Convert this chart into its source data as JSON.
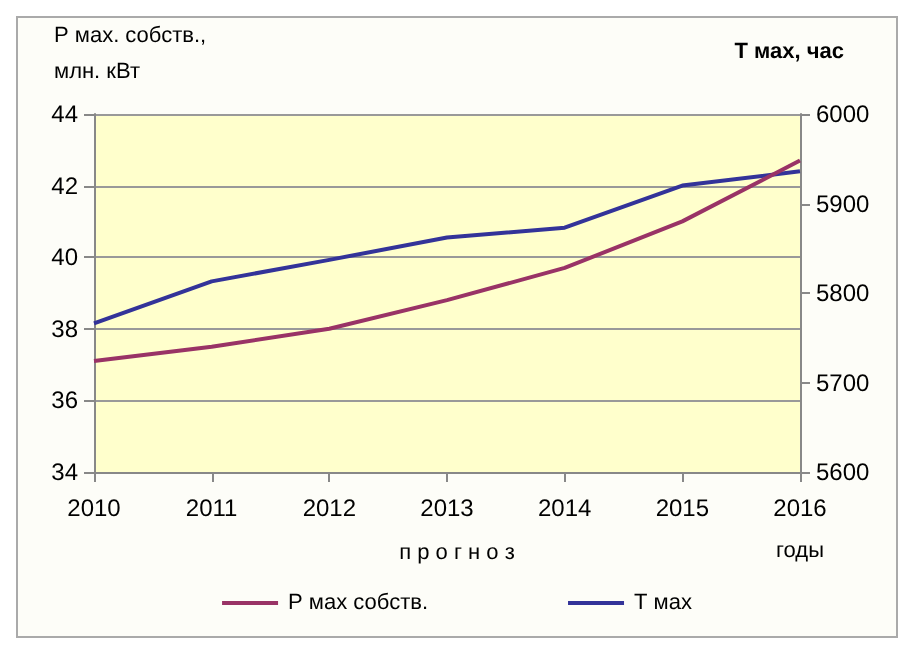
{
  "chart_data": {
    "type": "line",
    "categories": [
      "2010",
      "2011",
      "2012",
      "2013",
      "2014",
      "2015",
      "2016"
    ],
    "series": [
      {
        "name": "Р мах собств.",
        "color": "#993366",
        "values": [
          37.1,
          37.5,
          38.0,
          38.8,
          39.7,
          41.0,
          42.7
        ]
      },
      {
        "name": "Т мах",
        "color": "#333399",
        "axis": "y2",
        "values": [
          5766,
          5813,
          5837,
          5862,
          5873,
          5920,
          5936
        ]
      }
    ],
    "ylabel": "Р мах. собств.,\nмлн. кВт",
    "y2label": "Т мах, час",
    "xlabel": "годы",
    "annotations": [
      "п р о г н о з"
    ],
    "ylim": [
      34,
      44
    ],
    "yticks": [
      34,
      36,
      38,
      40,
      42,
      44
    ],
    "y2lim": [
      5600,
      6000
    ],
    "y2ticks": [
      5600,
      5700,
      5800,
      5900,
      6000
    ],
    "grid": "y",
    "legend": "bottom",
    "marker": "none",
    "line_style": "solid"
  }
}
